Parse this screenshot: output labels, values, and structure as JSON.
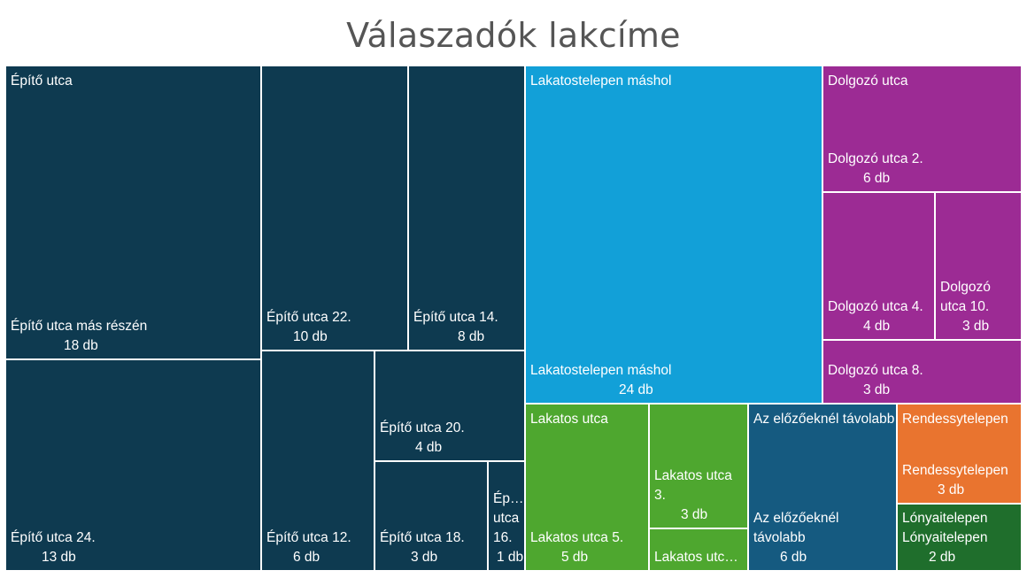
{
  "chart_data": {
    "type": "treemap",
    "title": "Válaszadók lakcíme",
    "unit": "db",
    "groups": [
      {
        "name": "Építő utca",
        "color": "#0e3a50",
        "children": [
          {
            "name": "Építő utca más részén",
            "value": 18,
            "value_label": "18 db"
          },
          {
            "name": "Építő utca 24.",
            "value": 13,
            "value_label": "13 db"
          },
          {
            "name": "Építő utca 22.",
            "value": 10,
            "value_label": "10 db"
          },
          {
            "name": "Építő utca 14.",
            "value": 8,
            "value_label": "8 db"
          },
          {
            "name": "Építő utca 12.",
            "value": 6,
            "value_label": "6 db"
          },
          {
            "name": "Építő utca 20.",
            "value": 4,
            "value_label": "4 db"
          },
          {
            "name": "Építő utca 18.",
            "value": 3,
            "value_label": "3 db"
          },
          {
            "name": "Ép… utca 16.",
            "value": 1,
            "value_label": "1 db"
          }
        ]
      },
      {
        "name": "Lakatostelepen máshol",
        "color": "#12a0d8",
        "children": [
          {
            "name": "Lakatostelepen máshol",
            "value": 24,
            "value_label": "24 db"
          }
        ]
      },
      {
        "name": "Dolgozó utca",
        "color": "#9c2b94",
        "children": [
          {
            "name": "Dolgozó utca 2.",
            "value": 6,
            "value_label": "6 db"
          },
          {
            "name": "Dolgozó utca 4.",
            "value": 4,
            "value_label": "4 db"
          },
          {
            "name": "Dolgozó utca 10.",
            "value": 3,
            "value_label": "3 db"
          },
          {
            "name": "Dolgozó utca 8.",
            "value": 3,
            "value_label": "3 db"
          }
        ]
      },
      {
        "name": "Lakatos utca",
        "color": "#4ea72f",
        "children": [
          {
            "name": "Lakatos utca 5.",
            "value": 5,
            "value_label": "5 db"
          },
          {
            "name": "Lakatos utca 3.",
            "value": 3,
            "value_label": "3 db"
          },
          {
            "name": "Lakatos utc…",
            "value": 2,
            "value_label": ""
          }
        ]
      },
      {
        "name": "Az előzőeknél távolabb",
        "color": "#155a80",
        "children": [
          {
            "name": "Az előzőeknél távolabb",
            "value": 6,
            "value_label": "6 db"
          }
        ]
      },
      {
        "name": "Rendessytelepen",
        "color": "#e9742f",
        "children": [
          {
            "name": "Rendessytelepen",
            "value": 3,
            "value_label": "3 db"
          }
        ]
      },
      {
        "name": "Lónyaitelepen",
        "color": "#1f6e2c",
        "children": [
          {
            "name": "Lónyaitelepen",
            "value": 2,
            "value_label": "2 db"
          }
        ]
      }
    ]
  }
}
